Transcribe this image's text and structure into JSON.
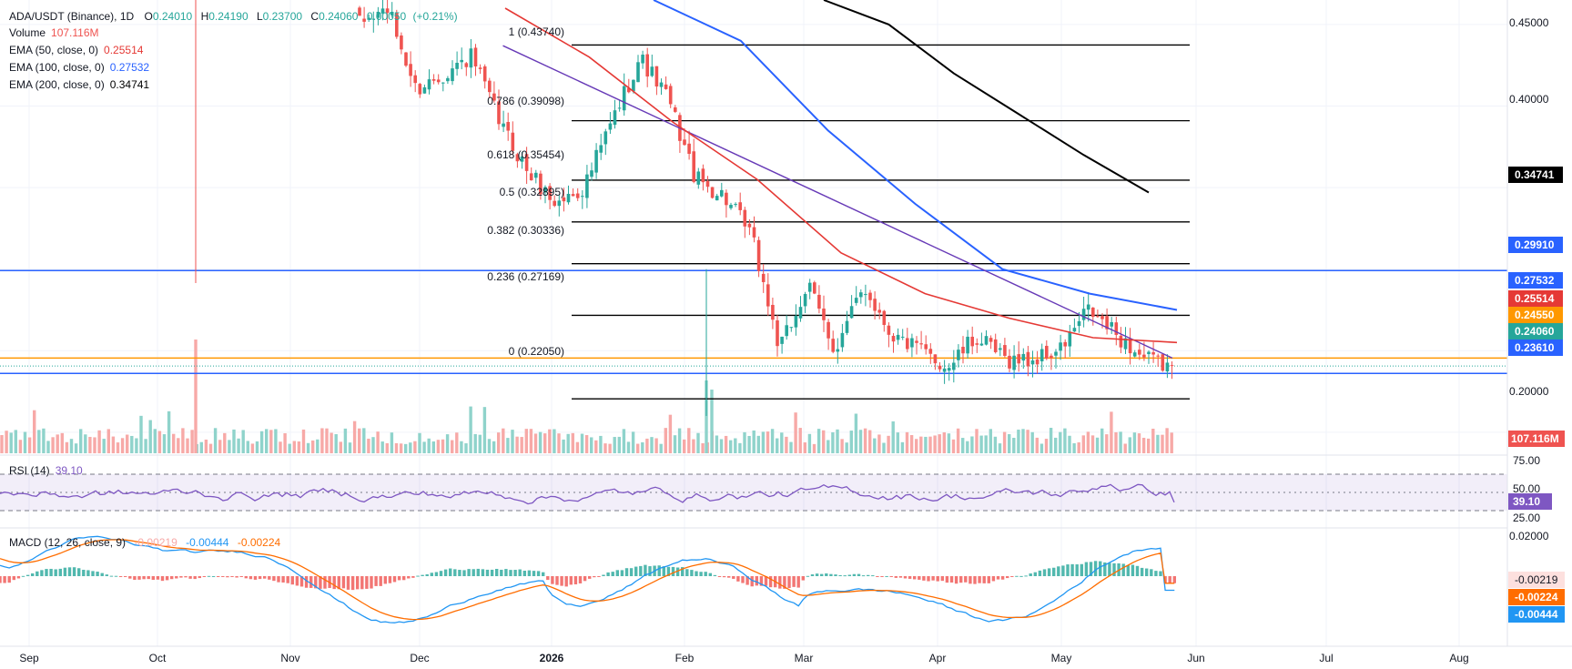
{
  "header": {
    "symbol": "ADA/USDT (Binance), 1D",
    "o_label": "O",
    "o": "0.24010",
    "h_label": "H",
    "h": "0.24190",
    "l_label": "L",
    "l": "0.23700",
    "c_label": "C",
    "c": "0.24060",
    "chg": "0.00050",
    "chg_pct": "(+0.21%)",
    "volume_label": "Volume",
    "volume": "107.116M",
    "ema50_label": "EMA (50, close, 0)",
    "ema50": "0.25514",
    "ema100_label": "EMA (100, close, 0)",
    "ema100": "0.27532",
    "ema200_label": "EMA (200, close, 0)",
    "ema200": "0.34741"
  },
  "colors": {
    "up": "#26a69a",
    "down": "#ef5350",
    "up_vol": "#8fd3cb",
    "down_vol": "#f7a9a7",
    "ema50": "#e53935",
    "ema100": "#2962ff",
    "ema200": "#000000",
    "trendline": "#673ab7",
    "support": "#2962ff",
    "orange": "#ff9800",
    "rsi": "#7e57c2",
    "macd": "#2196f3",
    "signal": "#ff6d00"
  },
  "price_axis": {
    "ticks": [
      "0.45000",
      "0.40000",
      "0.35000",
      "0.30000",
      "0.25000",
      "0.20000"
    ],
    "badges": {
      "ema200": "0.34741",
      "res": "0.29910",
      "ema100": "0.27532",
      "ema50": "0.25514",
      "orange": "0.24550",
      "last": "0.24060",
      "support": "0.23610",
      "volume": "107.116M"
    }
  },
  "time_axis": [
    "Sep",
    "Oct",
    "Nov",
    "Dec",
    "2026",
    "Feb",
    "Mar",
    "Apr",
    "May",
    "Jun",
    "Jul",
    "Aug"
  ],
  "rsi": {
    "label": "RSI (14)",
    "value": "39.10",
    "ticks": [
      "75.00",
      "50.00",
      "25.00"
    ],
    "badge": "39.10"
  },
  "macd": {
    "label": "MACD (12, 26, close, 9)",
    "hist": "-0.00219",
    "macd": "-0.00444",
    "signal": "-0.00224",
    "ticks": [
      "0.02000"
    ],
    "badges": {
      "hist": "-0.00219",
      "signal": "-0.00224",
      "macd": "-0.00444"
    }
  },
  "chart_data": {
    "type": "candlestick",
    "title": "ADA/USDT (Binance), 1D",
    "ylim": [
      0.186,
      0.465
    ],
    "x": [
      "2025-09",
      "2025-10",
      "2025-11",
      "2025-12",
      "2026-01",
      "2026-02",
      "2026-03",
      "2026-04",
      "2026-05",
      "2026-06",
      "2026-07",
      "2026-08"
    ],
    "price_path": [
      [
        0.45,
        0.46
      ],
      [
        0.41,
        0.42
      ],
      [
        0.43,
        0.39
      ],
      [
        0.36,
        0.34
      ],
      [
        0.35,
        0.39
      ],
      [
        0.43,
        0.405
      ],
      [
        0.355,
        0.345
      ],
      [
        0.32,
        0.25
      ],
      [
        0.29,
        0.25
      ],
      [
        0.29,
        0.26
      ],
      [
        0.25,
        0.24
      ],
      [
        0.258,
        0.245
      ],
      [
        0.244,
        0.25
      ],
      [
        0.275,
        0.26
      ],
      [
        0.245,
        0.24
      ]
    ],
    "fibonacci": {
      "levels": [
        {
          "ratio": "1",
          "price": 0.4374
        },
        {
          "ratio": "0.786",
          "price": 0.39098
        },
        {
          "ratio": "0.618",
          "price": 0.35454
        },
        {
          "ratio": "0.5",
          "price": 0.32895
        },
        {
          "ratio": "0.382",
          "price": 0.30336
        },
        {
          "ratio": "0.236",
          "price": 0.27169
        },
        {
          "ratio": "0",
          "price": 0.2205
        }
      ],
      "labels": [
        "1 (0.43740)",
        "0.786 (0.39098)",
        "0.618 (0.35454)",
        "0.5 (0.32895)",
        "0.382 (0.30336)",
        "0.236 (0.27169)",
        "0 (0.22050)"
      ]
    },
    "horizontal_levels": [
      0.2991,
      0.2455,
      0.2361
    ],
    "trendline": [
      [
        "2026-01-01",
        0.437
      ],
      [
        "2026-06-13",
        0.2455
      ]
    ],
    "ema50": [
      0.46,
      0.43,
      0.39,
      0.355,
      0.31,
      0.285,
      0.27,
      0.258,
      0.255
    ],
    "ema100": [
      0.465,
      0.44,
      0.385,
      0.34,
      0.3,
      0.285,
      0.275
    ],
    "ema200": [
      0.465,
      0.45,
      0.42,
      0.395,
      0.37,
      0.347
    ],
    "rsi": {
      "ylim": [
        15,
        85
      ],
      "levels": [
        70,
        50,
        30
      ],
      "last": 39.1
    },
    "macd": {
      "last_hist": -0.00219,
      "last_macd": -0.00444,
      "last_signal": -0.00224
    }
  }
}
